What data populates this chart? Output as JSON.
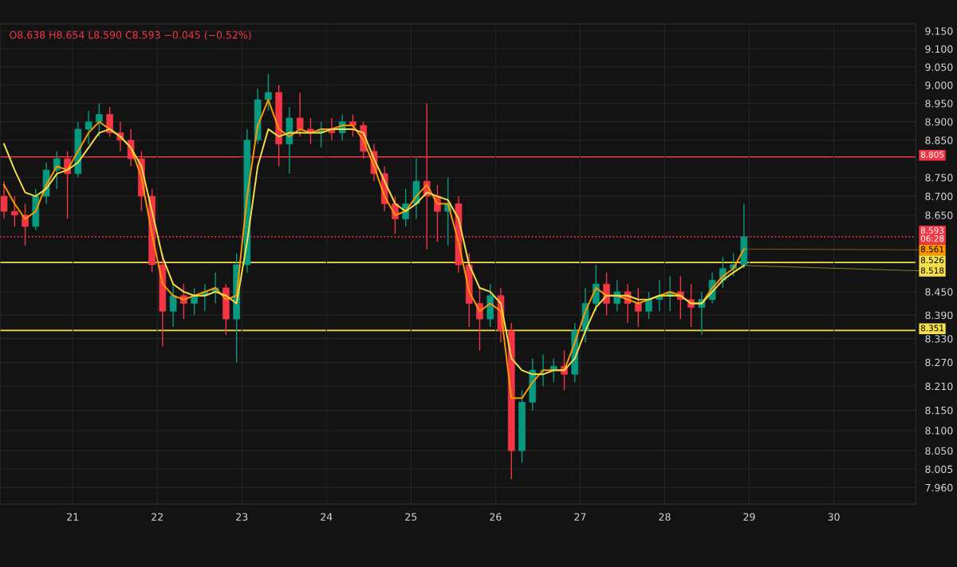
{
  "chart_data": {
    "type": "candlestick",
    "annotations": [
      "O8.638 H8.654 L8.590 C8.593 −0.045 (−0.52%)",
      {
        "text": "8.561",
        "x": 28.9375,
        "y": 8.561
      },
      {
        "text": "8.518",
        "x": 28.9375,
        "y": 8.518
      }
    ],
    "x": [
      20.1875,
      20.3125,
      20.4375,
      20.5625,
      20.6875,
      20.8125,
      20.9375,
      21.0625,
      21.1875,
      21.3125,
      21.4375,
      21.5625,
      21.6875,
      21.8125,
      21.9375,
      22.0625,
      22.1875,
      22.3125,
      22.4375,
      22.5625,
      22.6875,
      22.8125,
      22.9375,
      23.0625,
      23.1875,
      23.3125,
      23.4375,
      23.5625,
      23.6875,
      23.8125,
      23.9375,
      24.0625,
      24.1875,
      24.3125,
      24.4375,
      24.5625,
      24.6875,
      24.8125,
      24.9375,
      25.0625,
      25.1875,
      25.3125,
      25.4375,
      25.5625,
      25.6875,
      25.8125,
      25.9375,
      26.0625,
      26.1875,
      26.3125,
      26.4375,
      26.5625,
      26.6875,
      26.8125,
      26.9375,
      27.0625,
      27.1875,
      27.3125,
      27.4375,
      27.5625,
      27.6875,
      27.8125,
      27.9375,
      28.0625,
      28.1875,
      28.3125,
      28.4375,
      28.5625,
      28.6875,
      28.8125,
      28.9375
    ],
    "ohlc": [
      [
        8.7,
        8.74,
        8.64,
        8.66
      ],
      [
        8.66,
        8.7,
        8.62,
        8.65
      ],
      [
        8.65,
        8.68,
        8.57,
        8.62
      ],
      [
        8.62,
        8.72,
        8.61,
        8.7
      ],
      [
        8.7,
        8.79,
        8.68,
        8.77
      ],
      [
        8.77,
        8.82,
        8.72,
        8.8
      ],
      [
        8.8,
        8.82,
        8.64,
        8.76
      ],
      [
        8.76,
        8.9,
        8.75,
        8.88
      ],
      [
        8.88,
        8.93,
        8.84,
        8.9
      ],
      [
        8.9,
        8.95,
        8.86,
        8.92
      ],
      [
        8.92,
        8.94,
        8.86,
        8.87
      ],
      [
        8.87,
        8.9,
        8.82,
        8.85
      ],
      [
        8.85,
        8.88,
        8.78,
        8.8
      ],
      [
        8.8,
        8.82,
        8.66,
        8.7
      ],
      [
        8.7,
        8.72,
        8.5,
        8.52
      ],
      [
        8.52,
        8.55,
        8.31,
        8.4
      ],
      [
        8.4,
        8.47,
        8.36,
        8.44
      ],
      [
        8.44,
        8.47,
        8.38,
        8.42
      ],
      [
        8.42,
        8.46,
        8.39,
        8.44
      ],
      [
        8.44,
        8.47,
        8.4,
        8.45
      ],
      [
        8.45,
        8.5,
        8.42,
        8.46
      ],
      [
        8.46,
        8.47,
        8.34,
        8.38
      ],
      [
        8.38,
        8.55,
        8.27,
        8.52
      ],
      [
        8.52,
        8.88,
        8.5,
        8.85
      ],
      [
        8.85,
        8.99,
        8.84,
        8.96
      ],
      [
        8.96,
        9.03,
        8.93,
        8.98
      ],
      [
        8.98,
        9.0,
        8.78,
        8.84
      ],
      [
        8.84,
        8.94,
        8.76,
        8.91
      ],
      [
        8.91,
        8.98,
        8.86,
        8.88
      ],
      [
        8.88,
        8.91,
        8.84,
        8.87
      ],
      [
        8.87,
        8.9,
        8.83,
        8.88
      ],
      [
        8.88,
        8.91,
        8.85,
        8.87
      ],
      [
        8.87,
        8.92,
        8.85,
        8.9
      ],
      [
        8.9,
        8.92,
        8.86,
        8.89
      ],
      [
        8.89,
        8.9,
        8.8,
        8.82
      ],
      [
        8.82,
        8.84,
        8.74,
        8.76
      ],
      [
        8.76,
        8.78,
        8.66,
        8.68
      ],
      [
        8.68,
        8.7,
        8.6,
        8.64
      ],
      [
        8.64,
        8.72,
        8.62,
        8.68
      ],
      [
        8.68,
        8.8,
        8.64,
        8.74
      ],
      [
        8.74,
        8.95,
        8.56,
        8.7
      ],
      [
        8.7,
        8.73,
        8.58,
        8.66
      ],
      [
        8.66,
        8.75,
        8.57,
        8.68
      ],
      [
        8.68,
        8.7,
        8.5,
        8.52
      ],
      [
        8.52,
        8.55,
        8.36,
        8.42
      ],
      [
        8.42,
        8.46,
        8.3,
        8.38
      ],
      [
        8.38,
        8.47,
        8.36,
        8.44
      ],
      [
        8.44,
        8.46,
        8.32,
        8.35
      ],
      [
        8.35,
        8.37,
        7.98,
        8.05
      ],
      [
        8.05,
        8.2,
        8.02,
        8.17
      ],
      [
        8.17,
        8.28,
        8.15,
        8.25
      ],
      [
        8.25,
        8.29,
        8.21,
        8.25
      ],
      [
        8.25,
        8.28,
        8.22,
        8.26
      ],
      [
        8.26,
        8.3,
        8.2,
        8.24
      ],
      [
        8.24,
        8.37,
        8.22,
        8.35
      ],
      [
        8.35,
        8.46,
        8.32,
        8.42
      ],
      [
        8.42,
        8.52,
        8.4,
        8.47
      ],
      [
        8.47,
        8.5,
        8.39,
        8.42
      ],
      [
        8.42,
        8.48,
        8.4,
        8.45
      ],
      [
        8.45,
        8.47,
        8.37,
        8.42
      ],
      [
        8.42,
        8.46,
        8.36,
        8.4
      ],
      [
        8.4,
        8.45,
        8.38,
        8.43
      ],
      [
        8.43,
        8.48,
        8.4,
        8.44
      ],
      [
        8.44,
        8.49,
        8.4,
        8.45
      ],
      [
        8.45,
        8.49,
        8.38,
        8.43
      ],
      [
        8.43,
        8.47,
        8.36,
        8.41
      ],
      [
        8.41,
        8.45,
        8.34,
        8.43
      ],
      [
        8.43,
        8.5,
        8.42,
        8.48
      ],
      [
        8.48,
        8.54,
        8.46,
        8.51
      ],
      [
        8.51,
        8.55,
        8.49,
        8.52
      ],
      [
        8.52,
        8.68,
        8.51,
        8.593
      ]
    ],
    "series": [
      {
        "type": "line",
        "color": "#ff9800",
        "values": [
          8.73,
          8.68,
          8.64,
          8.66,
          8.73,
          8.78,
          8.77,
          8.82,
          8.87,
          8.9,
          8.88,
          8.86,
          8.83,
          8.75,
          8.6,
          8.47,
          8.44,
          8.43,
          8.44,
          8.45,
          8.46,
          8.43,
          8.44,
          8.7,
          8.89,
          8.96,
          8.88,
          8.86,
          8.88,
          8.87,
          8.88,
          8.88,
          8.89,
          8.89,
          8.85,
          8.78,
          8.7,
          8.65,
          8.66,
          8.7,
          8.73,
          8.68,
          8.68,
          8.58,
          8.45,
          8.4,
          8.42,
          8.4,
          8.18,
          8.18,
          8.22,
          8.25,
          8.25,
          8.25,
          8.32,
          8.4,
          8.46,
          8.44,
          8.44,
          8.43,
          8.42,
          8.43,
          8.44,
          8.45,
          8.44,
          8.42,
          8.42,
          8.46,
          8.49,
          8.51,
          8.561
        ]
      },
      {
        "type": "line",
        "color": "#f5e04a",
        "values": [
          8.84,
          8.77,
          8.71,
          8.7,
          8.72,
          8.76,
          8.77,
          8.79,
          8.83,
          8.87,
          8.88,
          8.86,
          8.83,
          8.78,
          8.66,
          8.54,
          8.47,
          8.45,
          8.44,
          8.44,
          8.45,
          8.44,
          8.42,
          8.58,
          8.78,
          8.88,
          8.86,
          8.87,
          8.87,
          8.87,
          8.87,
          8.88,
          8.88,
          8.88,
          8.87,
          8.8,
          8.74,
          8.68,
          8.66,
          8.68,
          8.71,
          8.7,
          8.69,
          8.64,
          8.52,
          8.46,
          8.45,
          8.42,
          8.28,
          8.25,
          8.24,
          8.24,
          8.25,
          8.25,
          8.28,
          8.35,
          8.41,
          8.44,
          8.44,
          8.44,
          8.43,
          8.43,
          8.44,
          8.44,
          8.44,
          8.42,
          8.42,
          8.45,
          8.48,
          8.5,
          8.518
        ]
      }
    ],
    "ref_lines": [
      {
        "axis": "y",
        "value": 8.805,
        "label": "8.805",
        "color": "#f23645"
      },
      {
        "axis": "y",
        "value": 8.593,
        "label": "8.593\n06:28",
        "color": "#f23645",
        "line_style": "dotted"
      },
      {
        "axis": "y",
        "value": 8.526,
        "label": "8.526",
        "color": "#f5e04a"
      },
      {
        "axis": "y",
        "value": 8.351,
        "label": "8.351",
        "color": "#f5e04a"
      }
    ],
    "log": true,
    "xlim": [
      20.14,
      30.97
    ],
    "xticks": [
      21,
      22,
      23,
      24,
      25,
      26,
      27,
      28,
      29,
      30
    ],
    "ylim": [
      7.92,
      9.17
    ],
    "yticks": [
      {
        "value": 9.15,
        "label": "9.150"
      },
      {
        "value": 9.1,
        "label": "9.100"
      },
      {
        "value": 9.05,
        "label": "9.050"
      },
      {
        "value": 9.0,
        "label": "9.000"
      },
      {
        "value": 8.95,
        "label": "8.950"
      },
      {
        "value": 8.9,
        "label": "8.900"
      },
      {
        "value": 8.85,
        "label": "8.850"
      },
      {
        "value": 8.75,
        "label": "8.750"
      },
      {
        "value": 8.7,
        "label": "8.700"
      },
      {
        "value": 8.65,
        "label": "8.650"
      },
      {
        "value": 8.45,
        "label": "8.450"
      },
      {
        "value": 8.39,
        "label": "8.390"
      },
      {
        "value": 8.33,
        "label": "8.330"
      },
      {
        "value": 8.27,
        "label": "8.270"
      },
      {
        "value": 8.21,
        "label": "8.210"
      },
      {
        "value": 8.15,
        "label": "8.150"
      },
      {
        "value": 8.1,
        "label": "8.100"
      },
      {
        "value": 8.05,
        "label": "8.050"
      },
      {
        "value": 8.005,
        "label": "8.005"
      },
      {
        "value": 7.96,
        "label": "7.960"
      }
    ],
    "grid": true,
    "legend": false
  }
}
